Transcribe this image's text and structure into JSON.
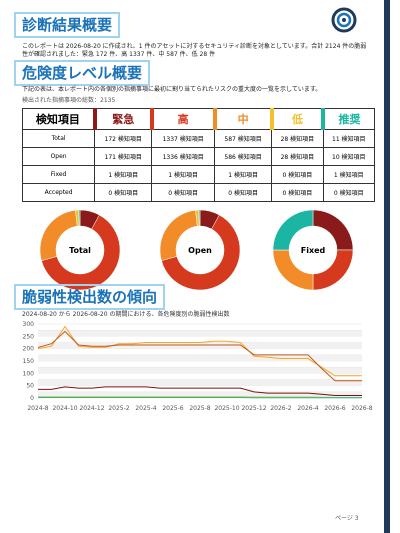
{
  "summary": {
    "title": "診断結果概要",
    "text": "このレポートは 2026-08-20 に作成され、1 件のアセットに対するセキュリティ診断を対象としています。合計 2124 件の脆弱性が確認されました：緊急 172 件、高 1337 件、中 587 件、低 28 件"
  },
  "severity": {
    "title": "危険度レベル概要",
    "text": "下記の表は、本レポート内の各個別の指摘事項に最初に割り当てられたリスクの重大度の一覧を示しています。",
    "total": "検出された指摘事項の総数：2135",
    "colors": [
      "#8b1a1a",
      "#d63a1e",
      "#f28c28",
      "#f2c12e",
      "#1bb5a3"
    ],
    "table": {
      "header": [
        "検知項目",
        "緊急",
        "高",
        "中",
        "低",
        "推奨"
      ],
      "rows": [
        [
          "Total",
          "172 検知項目",
          "1337 検知項目",
          "587 検知項目",
          "28 検知項目",
          "11 検知項目"
        ],
        [
          "Open",
          "171 検知項目",
          "1336 検知項目",
          "586 検知項目",
          "28 検知項目",
          "10 検知項目"
        ],
        [
          "Fixed",
          "1 検知項目",
          "1 検知項目",
          "1 検知項目",
          "0 検知項目",
          "1 検知項目"
        ],
        [
          "Accepted",
          "0 検知項目",
          "0 検知項目",
          "0 検知項目",
          "0 検知項目",
          "0 検知項目"
        ]
      ]
    },
    "donuts": [
      {
        "label": "Total",
        "values": [
          172,
          1337,
          587,
          28,
          11
        ]
      },
      {
        "label": "Open",
        "values": [
          171,
          1336,
          586,
          28,
          10
        ]
      },
      {
        "label": "Fixed",
        "values": [
          1,
          1,
          1,
          0,
          1
        ]
      }
    ]
  },
  "trend": {
    "title": "脆弱性検出数の傾向",
    "chart_data": {
      "type": "line",
      "subtitle": "2024-08-20 から 2026-08-20 の期間における、各危険度別の脆弱性検出数",
      "categories": [
        "2024-8",
        null,
        "2024-10",
        null,
        "2024-12",
        null,
        "2025-2",
        null,
        "2025-4",
        null,
        "2025-6",
        null,
        "2025-8",
        null,
        "2025-10",
        null,
        "2025-12",
        null,
        "2026-2",
        null,
        "2026-4",
        null,
        "2026-6",
        null,
        "2026-8"
      ],
      "series": [
        {
          "color": "#f5a623",
          "values": [
            200,
            210,
            290,
            210,
            205,
            205,
            220,
            220,
            225,
            225,
            225,
            225,
            225,
            230,
            230,
            225,
            170,
            165,
            160,
            160,
            160,
            125,
            90,
            90,
            90
          ]
        },
        {
          "color": "#c0561b",
          "values": [
            205,
            220,
            270,
            215,
            210,
            210,
            215,
            215,
            215,
            215,
            215,
            215,
            215,
            215,
            215,
            215,
            175,
            175,
            175,
            175,
            175,
            120,
            70,
            70,
            70
          ]
        },
        {
          "color": "#7a1010",
          "values": [
            35,
            35,
            45,
            40,
            40,
            45,
            45,
            45,
            45,
            40,
            40,
            40,
            40,
            40,
            40,
            40,
            25,
            20,
            20,
            20,
            20,
            15,
            10,
            10,
            10
          ]
        },
        {
          "color": "#c8c82a",
          "values": [
            5,
            5,
            5,
            5,
            5,
            5,
            5,
            5,
            5,
            5,
            5,
            5,
            5,
            5,
            5,
            5,
            4,
            4,
            4,
            4,
            4,
            3,
            2,
            2,
            2
          ]
        },
        {
          "color": "#2ab3a6",
          "values": [
            2,
            2,
            2,
            2,
            2,
            2,
            2,
            2,
            2,
            2,
            2,
            2,
            2,
            2,
            2,
            2,
            1,
            1,
            1,
            1,
            1,
            1,
            1,
            1,
            1
          ]
        }
      ],
      "ylim": [
        0,
        300
      ],
      "yticks": [
        0,
        25,
        50,
        75,
        100,
        125,
        150,
        175,
        200,
        225,
        250,
        275,
        300
      ],
      "grid": true
    }
  },
  "footer": "ページ 3"
}
